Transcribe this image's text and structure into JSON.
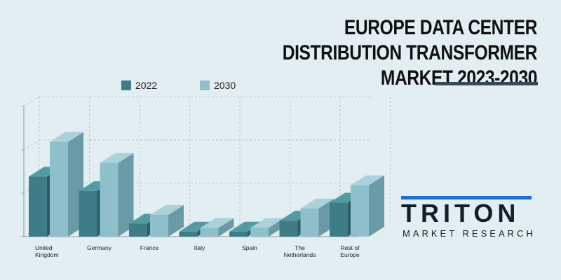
{
  "title": "EUROPE DATA CENTER DISTRIBUTION TRANSFORMER MARKET 2023-2030",
  "logo": {
    "word": "TRITON",
    "tagline": "MARKET RESEARCH"
  },
  "colors": {
    "s2022_front": "#3e7d87",
    "s2022_side": "#2b5e66",
    "s2022_top": "#549aa4",
    "s2030_front": "#8fbfca",
    "s2030_side": "#6a9aa5",
    "s2030_top": "#a9d2da",
    "accent": "#344a59",
    "logo_blue": "#1f6fd1"
  },
  "chart_data": {
    "type": "bar",
    "categories": [
      [
        "United",
        "Kingdom"
      ],
      [
        "Germany"
      ],
      [
        "France"
      ],
      [
        "Italy"
      ],
      [
        "Spain"
      ],
      [
        "The",
        "Netherlands"
      ],
      [
        "Rest of",
        "Europe"
      ]
    ],
    "series": [
      {
        "name": "2022",
        "values": [
          83,
          63,
          18,
          7,
          7,
          22,
          47
        ]
      },
      {
        "name": "2030",
        "values": [
          131,
          102,
          30,
          12,
          12,
          39,
          71
        ]
      }
    ],
    "ylim": [
      0,
      180
    ],
    "grid": true,
    "legend_position": "top"
  }
}
